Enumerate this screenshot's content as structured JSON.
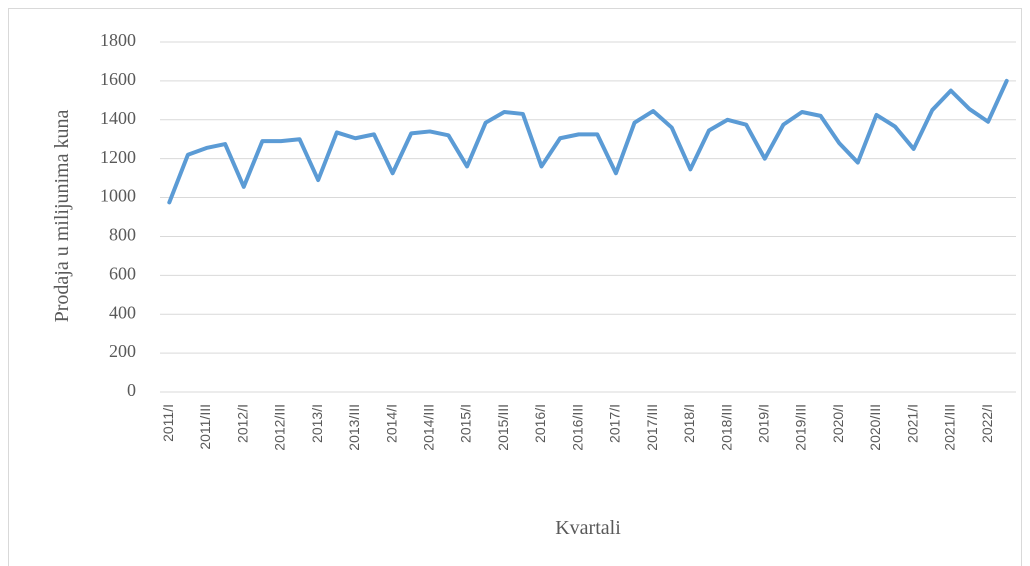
{
  "chart_data": {
    "type": "line",
    "x_label": "Kvartali",
    "y_label": "Prodaja u milijunima kuna",
    "categories": [
      "2011/I",
      null,
      "2011/III",
      null,
      "2012/I",
      null,
      "2012/III",
      null,
      "2013/I",
      null,
      "2013/III",
      null,
      "2014/I",
      null,
      "2014/III",
      null,
      "2015/I",
      null,
      "2015/III",
      null,
      "2016/I",
      null,
      "2016/III",
      null,
      "2017/I",
      null,
      "2017/III",
      null,
      "2018/I",
      null,
      "2018/III",
      null,
      "2019/I",
      null,
      "2019/III",
      null,
      "2020/I",
      null,
      "2020/III",
      null,
      "2021/I",
      null,
      "2021/III",
      null,
      "2022/I",
      null
    ],
    "series": [
      {
        "name": "Prodaja",
        "color": "#5b9bd5",
        "values": [
          975,
          1220,
          1255,
          1275,
          1055,
          1290,
          1290,
          1300,
          1090,
          1335,
          1305,
          1325,
          1125,
          1330,
          1340,
          1320,
          1160,
          1385,
          1440,
          1430,
          1160,
          1305,
          1325,
          1325,
          1125,
          1385,
          1445,
          1360,
          1145,
          1345,
          1400,
          1375,
          1200,
          1375,
          1440,
          1420,
          1280,
          1180,
          1425,
          1365,
          1250,
          1450,
          1550,
          1455,
          1390,
          1600
        ]
      }
    ],
    "ylim": [
      0,
      1800
    ],
    "yticks": [
      0,
      200,
      400,
      600,
      800,
      1000,
      1200,
      1400,
      1600,
      1800
    ],
    "grid": true
  }
}
